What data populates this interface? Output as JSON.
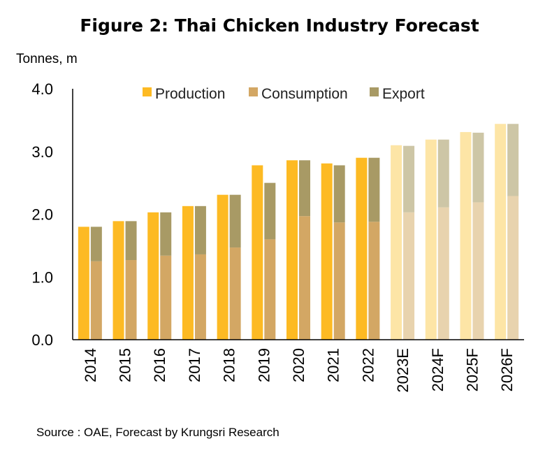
{
  "title": "Figure 2: Thai Chicken Industry Forecast",
  "unit_label": "Tonnes, m",
  "source": "Source : OAE, Forecast by Krungsri Research",
  "colors": {
    "production": "#FDBA23",
    "consumption": "#D3A764",
    "export": "#A89A65",
    "production_forecast": "#FDE5A6",
    "consumption_forecast": "#E8D3AE",
    "export_forecast": "#CDC6A6",
    "axis": "#000000"
  },
  "chart_data": {
    "type": "bar",
    "title": "Figure 2: Thai Chicken Industry Forecast",
    "ylabel": "Tonnes, m",
    "xlabel": "",
    "ylim": [
      0,
      4
    ],
    "yticks": [
      "0.0",
      "1.0",
      "2.0",
      "3.0",
      "4.0"
    ],
    "legend_position": "top",
    "categories": [
      "2014",
      "2015",
      "2016",
      "2017",
      "2018",
      "2019",
      "2020",
      "2021",
      "2022",
      "2023E",
      "2024F",
      "2025F",
      "2026F"
    ],
    "forecast_categories": [
      "2023E",
      "2024F",
      "2025F",
      "2026F"
    ],
    "series": [
      {
        "name": "Production",
        "values": [
          1.8,
          1.89,
          2.03,
          2.13,
          2.31,
          2.78,
          2.86,
          2.81,
          2.9,
          3.1,
          3.19,
          3.31,
          3.44
        ]
      },
      {
        "name": "Consumption",
        "values": [
          1.25,
          1.27,
          1.34,
          1.36,
          1.47,
          1.6,
          1.97,
          1.87,
          1.88,
          2.03,
          2.11,
          2.19,
          2.29
        ]
      },
      {
        "name": "Export",
        "values": [
          0.55,
          0.62,
          0.69,
          0.77,
          0.84,
          0.9,
          0.89,
          0.91,
          1.02,
          1.06,
          1.08,
          1.11,
          1.15
        ]
      }
    ]
  }
}
